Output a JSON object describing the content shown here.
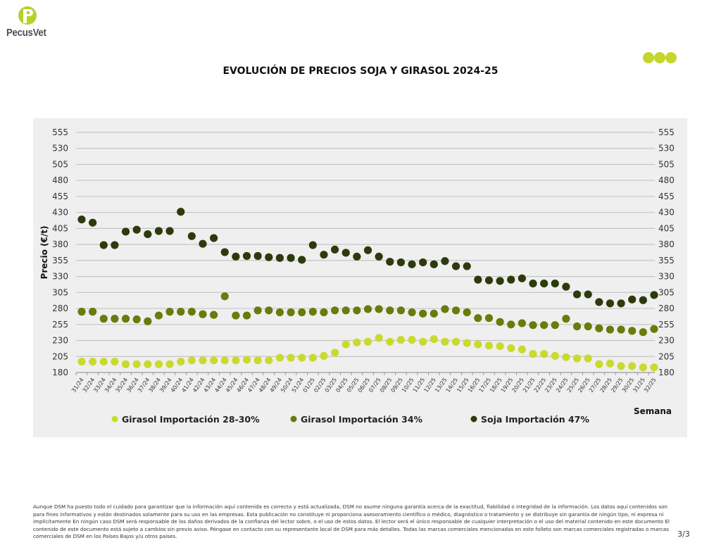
{
  "brand": {
    "name": "PecusVet",
    "logo_letter": "P"
  },
  "colors": {
    "light": "#c9da2f",
    "mid": "#6b7a0b",
    "dark": "#2d3a0c",
    "grid": "#c4c4c4",
    "panel": "#efefef"
  },
  "chart_data": {
    "type": "scatter",
    "title": "EVOLUCIÓN DE PRECIOS SOJA Y GIRASOL 2024-25",
    "xlabel": "Semana",
    "ylabel": "Precio (€/t)",
    "ylim": [
      180,
      555
    ],
    "yticks": [
      180,
      205,
      230,
      255,
      280,
      305,
      330,
      355,
      380,
      405,
      430,
      455,
      480,
      505,
      530,
      555
    ],
    "grid": true,
    "legend_placement": "bottom",
    "categories": [
      "31/24",
      "32/24",
      "33/24",
      "34/24",
      "35/24",
      "36/24",
      "37/24",
      "38/24",
      "39/24",
      "40/24",
      "41/24",
      "42/24",
      "43/24",
      "44/24",
      "45/24",
      "46/24",
      "47/24",
      "48/24",
      "49/24",
      "50/24",
      "51/24",
      "01/25",
      "02/25",
      "03/25",
      "04/25",
      "05/25",
      "06/25",
      "07/25",
      "08/25",
      "09/25",
      "10/25",
      "11/25",
      "12/25",
      "13/25",
      "14/25",
      "15/25",
      "16/25",
      "17/25",
      "18/25",
      "19/25",
      "20/25",
      "21/25",
      "22/25",
      "23/25",
      "24/25",
      "25/25",
      "26/25",
      "27/25",
      "28/25",
      "29/25",
      "30/25",
      "31/25",
      "32/25"
    ],
    "series": [
      {
        "name": "Girasol Importación 28-30%",
        "color": "#c9da2f",
        "values": [
          197,
          197,
          197,
          197,
          193,
          193,
          193,
          193,
          193,
          197,
          199,
          199,
          199,
          199,
          199,
          200,
          199,
          199,
          203,
          203,
          203,
          203,
          206,
          211,
          224,
          227,
          228,
          234,
          228,
          231,
          231,
          228,
          232,
          228,
          228,
          226,
          224,
          222,
          221,
          218,
          216,
          209,
          209,
          206,
          204,
          202,
          202,
          193,
          194,
          190,
          190,
          188,
          188
        ]
      },
      {
        "name": "Girasol Importación 34%",
        "color": "#6b7a0b",
        "values": [
          275,
          275,
          264,
          264,
          264,
          263,
          260,
          269,
          275,
          275,
          275,
          271,
          270,
          299,
          269,
          269,
          277,
          277,
          274,
          274,
          274,
          275,
          274,
          277,
          277,
          277,
          279,
          279,
          277,
          277,
          274,
          272,
          272,
          279,
          277,
          274,
          265,
          265,
          259,
          255,
          257,
          254,
          254,
          254,
          264,
          252,
          252,
          249,
          247,
          247,
          245,
          243,
          248
        ]
      },
      {
        "name": "Soja Importación 47%",
        "color": "#2d3a0c",
        "values": [
          419,
          414,
          379,
          379,
          400,
          403,
          396,
          401,
          401,
          431,
          393,
          381,
          390,
          368,
          361,
          362,
          362,
          360,
          359,
          359,
          356,
          379,
          364,
          372,
          367,
          361,
          371,
          361,
          353,
          352,
          349,
          352,
          349,
          354,
          346,
          346,
          325,
          324,
          323,
          325,
          327,
          319,
          319,
          319,
          314,
          302,
          302,
          290,
          288,
          288,
          294,
          293,
          301
        ]
      }
    ]
  },
  "footer": {
    "disclaimer": "Aunque DSM ha puesto todo el cuidado para garantizar que la información aquí contenida es correcta y está actualizada, DSM no asume ninguna garantía acerca de la exactitud, fiabilidad o integridad de la información. Los datos aquí contenidos son para fines informativos y están destinados solamente para su uso en las empresas. Esta publicación no constituye ni proporciona asesoramiento científico o médico, diagnóstico o tratamiento y se distribuye sin garantía de ningún tipo, ni expresa ni implícitamente En ningún caso DSM será responsable de los daños derivados de la confianza del lector sobre, o el uso de estos datos. El lector será el único responsable de cualquier interpretación o el uso del material contenido en este documento El contenido de este documento está sujeto a cambios sin previo aviso. Póngase en contacto con su representante local de DSM para más detalles. Todas las marcas comerciales mencionadas en este folleto son marcas comerciales registradas o marcas comerciales de DSM en los Países Bajos y/u otros países.",
    "page": "3/3"
  }
}
